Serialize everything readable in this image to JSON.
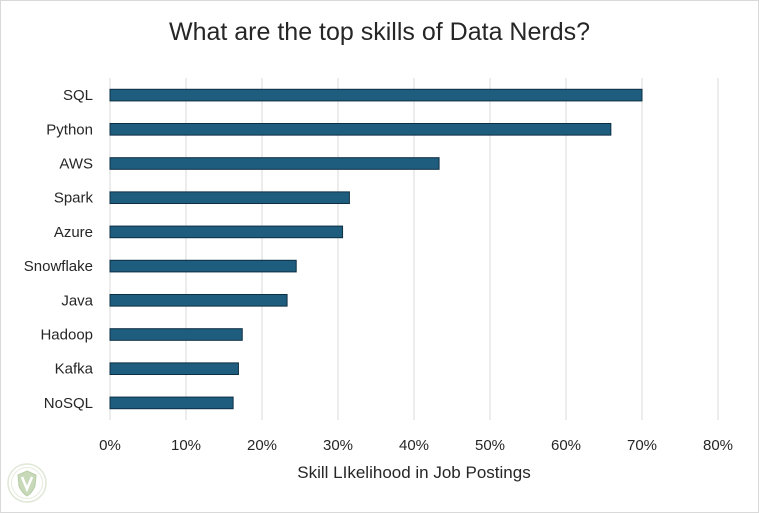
{
  "chart_data": {
    "type": "bar",
    "orientation": "horizontal",
    "title": "What are the top skills of Data Nerds?",
    "xlabel": "Skill LIkelihood in Job Postings",
    "ylabel": "",
    "categories": [
      "SQL",
      "Python",
      "AWS",
      "Spark",
      "Azure",
      "Snowflake",
      "Java",
      "Hadoop",
      "Kafka",
      "NoSQL"
    ],
    "values": [
      70.0,
      65.9,
      43.3,
      31.5,
      30.6,
      24.5,
      23.3,
      17.4,
      16.9,
      16.2
    ],
    "xlim": [
      0,
      80
    ],
    "xticks": [
      "0%",
      "10%",
      "20%",
      "30%",
      "40%",
      "50%",
      "60%",
      "70%",
      "80%"
    ],
    "grid": "vertical",
    "legend": "none",
    "colors": {
      "bar": "#1f5d7e",
      "bar_edge": "#0d2f44",
      "grid": "#d9d9d9",
      "text": "#262626"
    }
  },
  "watermark": {
    "icon": "shield-logo-icon"
  }
}
